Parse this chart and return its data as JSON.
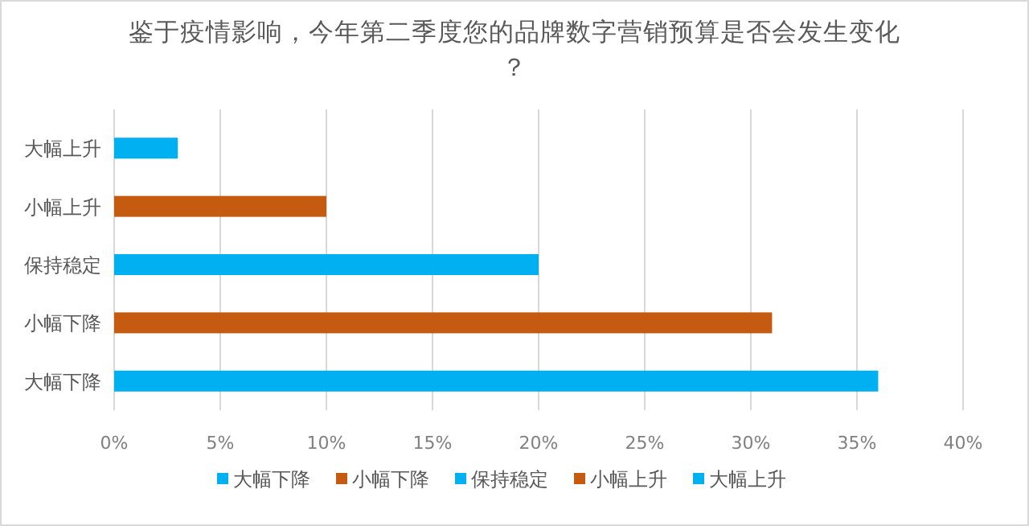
{
  "chart_data": {
    "type": "bar",
    "orientation": "horizontal",
    "title": "鉴于疫情影响，今年第二季度您的品牌数字营销预算是否会发生变化？",
    "categories": [
      "大幅上升",
      "小幅上升",
      "保持稳定",
      "小幅下降",
      "大幅下降"
    ],
    "series": [
      {
        "name": "大幅下降",
        "color": "#00b0f0",
        "values": [
          null,
          null,
          null,
          null,
          36
        ]
      },
      {
        "name": "小幅下降",
        "color": "#c55a11",
        "values": [
          null,
          null,
          null,
          31,
          null
        ]
      },
      {
        "name": "保持稳定",
        "color": "#00b0f0",
        "values": [
          null,
          null,
          20,
          null,
          null
        ]
      },
      {
        "name": "小幅上升",
        "color": "#c55a11",
        "values": [
          null,
          10,
          null,
          null,
          null
        ]
      },
      {
        "name": "大幅上升",
        "color": "#00b0f0",
        "values": [
          3,
          null,
          null,
          null,
          null
        ]
      }
    ],
    "xlim": [
      0,
      40
    ],
    "xticks": [
      {
        "value": 0,
        "label": "0%"
      },
      {
        "value": 5,
        "label": "5%"
      },
      {
        "value": 10,
        "label": "10%"
      },
      {
        "value": 15,
        "label": "15%"
      },
      {
        "value": 20,
        "label": "20%"
      },
      {
        "value": 25,
        "label": "25%"
      },
      {
        "value": 30,
        "label": "30%"
      },
      {
        "value": 35,
        "label": "35%"
      },
      {
        "value": 40,
        "label": "40%"
      }
    ],
    "grid": "x",
    "legend": "bottom"
  }
}
